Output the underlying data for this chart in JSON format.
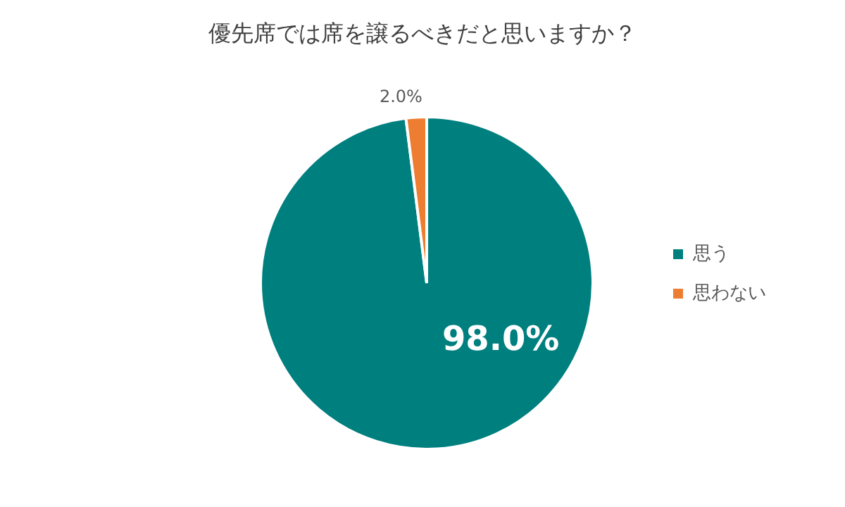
{
  "chart_data": {
    "type": "pie",
    "title": "優先席では席を譲るべきだと思いますか？",
    "categories": [
      "思う",
      "思わない"
    ],
    "values": [
      98,
      2
    ],
    "colors": [
      "#007f7f",
      "#ed7d31"
    ],
    "value_labels": [
      "98.0%",
      "2.0%"
    ],
    "legend": "right"
  }
}
